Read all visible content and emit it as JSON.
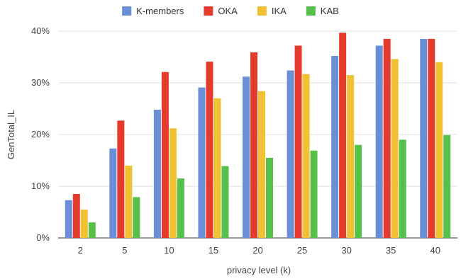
{
  "chart_data": {
    "type": "bar",
    "title": "",
    "xlabel": "privacy level (k)",
    "ylabel": "GenTotal_IL",
    "categories": [
      "2",
      "5",
      "10",
      "15",
      "20",
      "25",
      "30",
      "35",
      "40"
    ],
    "ylim": [
      0,
      40
    ],
    "yticks": [
      {
        "value": 0,
        "label": "0%"
      },
      {
        "value": 10,
        "label": "10%"
      },
      {
        "value": 20,
        "label": "20%"
      },
      {
        "value": 30,
        "label": "30%"
      },
      {
        "value": 40,
        "label": "40%"
      }
    ],
    "grid": true,
    "legend_position": "top",
    "series": [
      {
        "name": "K-members",
        "color": "#6a8fd6",
        "values": [
          7.3,
          17.3,
          24.8,
          29.1,
          31.2,
          32.4,
          35.2,
          37.2,
          38.5
        ]
      },
      {
        "name": "OKA",
        "color": "#e53b2c",
        "values": [
          8.5,
          22.7,
          32.1,
          34.1,
          35.9,
          37.2,
          39.7,
          38.5,
          38.5
        ]
      },
      {
        "name": "IKA",
        "color": "#f0c132",
        "values": [
          5.5,
          14.0,
          21.2,
          27.0,
          28.4,
          31.7,
          31.5,
          34.6,
          34.0
        ]
      },
      {
        "name": "KAB",
        "color": "#56c04a",
        "values": [
          3.0,
          7.9,
          11.5,
          13.9,
          15.5,
          16.9,
          18.0,
          19.0,
          19.9
        ]
      }
    ]
  }
}
